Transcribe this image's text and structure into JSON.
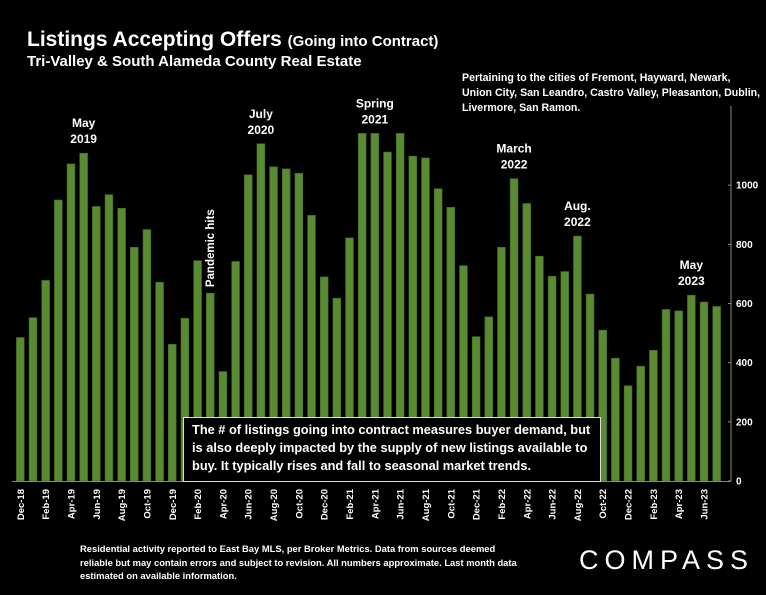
{
  "title": "Listings Accepting Offers",
  "title_paren": "(Going into Contract)",
  "subtitle": "Tri-Valley & South Alameda County Real Estate",
  "cities_note": "Pertaining to the cities of Fremont, Hayward, Newark, Union City, San Leandro, Castro Valley, Pleasanton, Dublin, Livermore, San Ramon.",
  "callout": "The # of listings going into contract measures buyer demand, but is also deeply impacted by the supply of new listings available to buy. It typically rises and fall to seasonal market trends.",
  "footnote": "Residential activity reported to East Bay MLS, per Broker Metrics. Data from sources deemed reliable but may contain errors and subject to revision.  All numbers approximate. Last month data estimated on available information.",
  "logo": "COMPASS",
  "colors": {
    "bar": "#5a8a32",
    "bar_edge": "#3f6a20",
    "background": "#000000",
    "text": "#ffffff"
  },
  "chart_data": {
    "type": "bar",
    "categories": [
      "Dec-18",
      "Jan-19",
      "Feb-19",
      "Mar-19",
      "Apr-19",
      "May-19",
      "Jun-19",
      "Jul-19",
      "Aug-19",
      "Sep-19",
      "Oct-19",
      "Nov-19",
      "Dec-19",
      "Jan-20",
      "Feb-20",
      "Mar-20",
      "Apr-20",
      "May-20",
      "Jun-20",
      "Jul-20",
      "Aug-20",
      "Sep-20",
      "Oct-20",
      "Nov-20",
      "Dec-20",
      "Jan-21",
      "Feb-21",
      "Mar-21",
      "Apr-21",
      "May-21",
      "Jun-21",
      "Jul-21",
      "Aug-21",
      "Sep-21",
      "Oct-21",
      "Nov-21",
      "Dec-21",
      "Jan-22",
      "Feb-22",
      "Mar-22",
      "Apr-22",
      "May-22",
      "Jun-22",
      "Jul-22",
      "Aug-22",
      "Sep-22",
      "Oct-22",
      "Nov-22",
      "Dec-22",
      "Jan-23",
      "Feb-23",
      "Mar-23",
      "Apr-23",
      "May-23",
      "Jun-23",
      "Jul-23"
    ],
    "tick_labels": [
      "Dec-18",
      "Feb-19",
      "Apr-19",
      "Jun-19",
      "Aug-19",
      "Oct-19",
      "Dec-19",
      "Feb-20",
      "Apr-20",
      "Jun-20",
      "Aug-20",
      "Oct-20",
      "Dec-20",
      "Feb-21",
      "Apr-21",
      "Jun-21",
      "Aug-21",
      "Oct-21",
      "Dec-21",
      "Feb-22",
      "Apr-22",
      "Jun-22",
      "Aug-22",
      "Oct-22",
      "Dec-22",
      "Feb-23",
      "Apr-23",
      "Jun-23"
    ],
    "values": [
      485,
      552,
      678,
      950,
      1072,
      1108,
      928,
      968,
      922,
      790,
      850,
      672,
      462,
      550,
      745,
      635,
      370,
      742,
      1035,
      1140,
      1062,
      1055,
      1040,
      898,
      690,
      618,
      822,
      1175,
      1175,
      1112,
      1175,
      1098,
      1092,
      988,
      925,
      728,
      488,
      555,
      790,
      1022,
      938,
      760,
      692,
      708,
      828,
      632,
      510,
      415,
      322,
      388,
      442,
      580,
      575,
      628,
      605,
      590
    ],
    "ylim": [
      0,
      1200
    ],
    "yticks": [
      0,
      200,
      400,
      600,
      800,
      1000
    ],
    "xlabel": "",
    "ylabel": "",
    "grid": false,
    "annotations": [
      {
        "label": "May 2019",
        "category": "May-19"
      },
      {
        "label": "Pandemic hits",
        "category": "Mar-20",
        "rotated": true
      },
      {
        "label": "July 2020",
        "category": "Jul-20"
      },
      {
        "label": "Spring 2021",
        "category": "Apr-21"
      },
      {
        "label": "March 2022",
        "category": "Mar-22"
      },
      {
        "label": "Aug. 2022",
        "category": "Aug-22"
      },
      {
        "label": "May 2023",
        "category": "May-23"
      }
    ]
  }
}
